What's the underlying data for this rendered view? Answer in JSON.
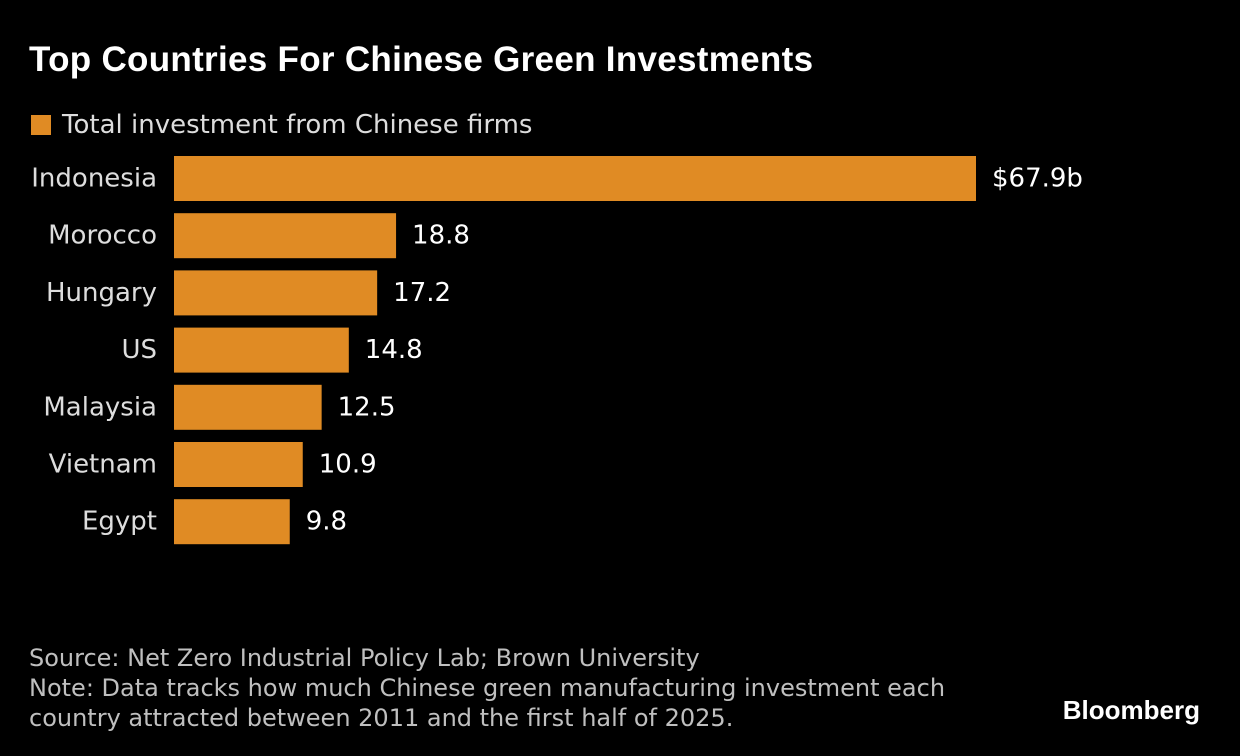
{
  "chart_data": {
    "type": "bar",
    "orientation": "horizontal",
    "title": "Top Countries For Chinese Green Investments",
    "legend": [
      "Total investment from Chinese firms"
    ],
    "categories": [
      "Indonesia",
      "Morocco",
      "Hungary",
      "US",
      "Malaysia",
      "Vietnam",
      "Egypt"
    ],
    "values": [
      67.9,
      18.8,
      17.2,
      14.8,
      12.5,
      10.9,
      9.8
    ],
    "value_labels": [
      "$67.9b",
      "18.8",
      "17.2",
      "14.8",
      "12.5",
      "10.9",
      "9.8"
    ],
    "xlim": [
      0,
      67.9
    ],
    "bar_color": "#e08b24",
    "grid": false
  },
  "footer": {
    "source": "Source: Net Zero Industrial Policy Lab; Brown University",
    "note_line1": "Note: Data tracks how much Chinese green manufacturing investment each",
    "note_line2": "country attracted between 2011 and the first half of 2025."
  },
  "brand": "Bloomberg"
}
